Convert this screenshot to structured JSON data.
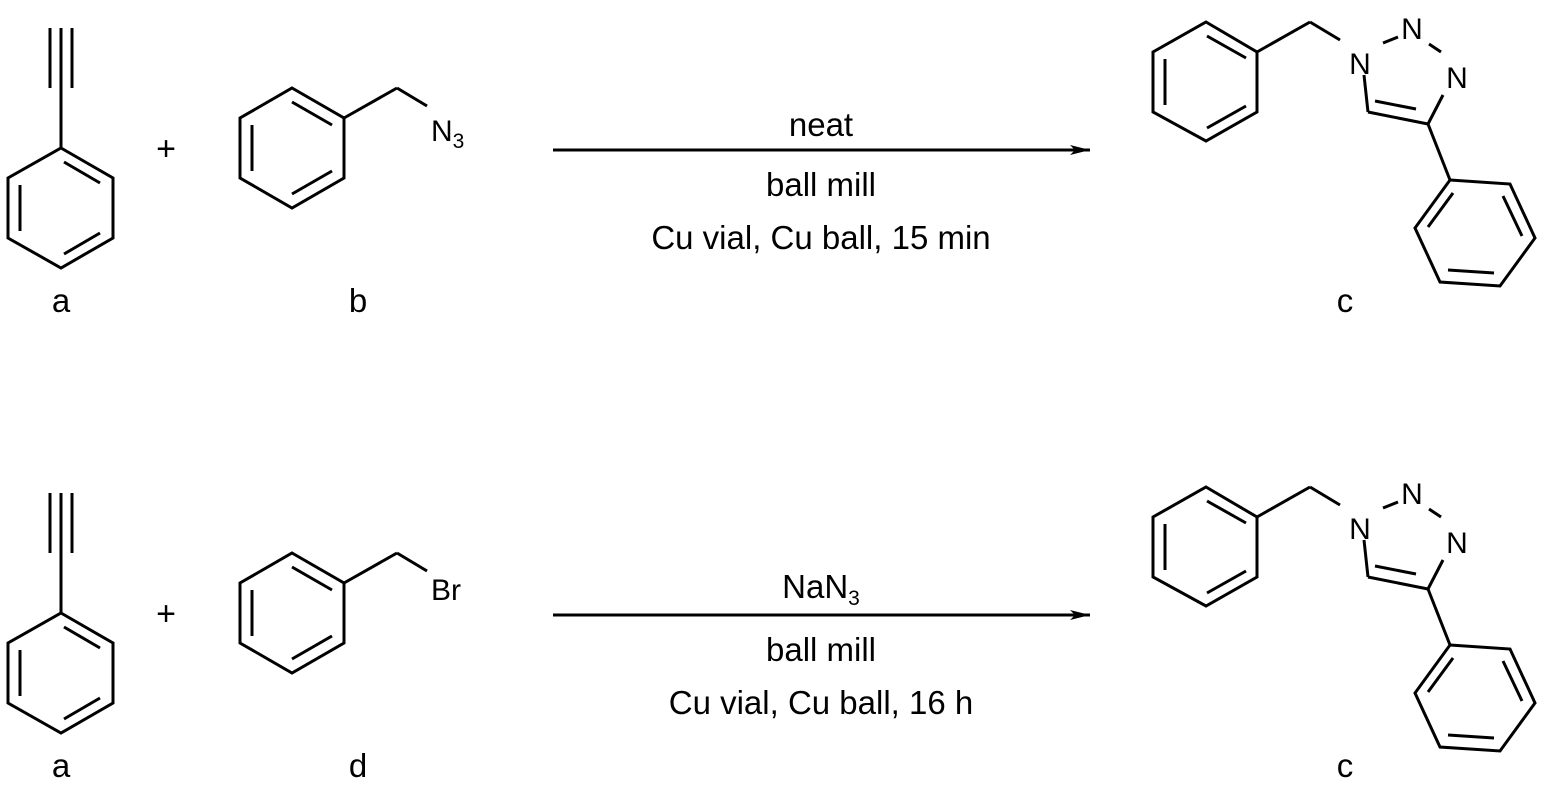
{
  "reactions": [
    {
      "reactants": [
        {
          "label": "a"
        },
        {
          "label": "b",
          "group": "N",
          "group_subscript": "3"
        }
      ],
      "plus": "+",
      "conditions": {
        "above": "neat",
        "above_subscript": "",
        "below_line1": "ball mill",
        "below_line2": "Cu vial, Cu  ball, 15 min"
      },
      "product": {
        "label": "c",
        "atoms": [
          "N",
          "N",
          "N"
        ]
      }
    },
    {
      "reactants": [
        {
          "label": "a"
        },
        {
          "label": "d",
          "group": "Br",
          "group_subscript": ""
        }
      ],
      "plus": "+",
      "conditions": {
        "above": "NaN",
        "above_subscript": "3",
        "below_line1": "ball mill",
        "below_line2": "Cu vial, Cu  ball, 16 h"
      },
      "product": {
        "label": "c",
        "atoms": [
          "N",
          "N",
          "N"
        ]
      }
    }
  ]
}
